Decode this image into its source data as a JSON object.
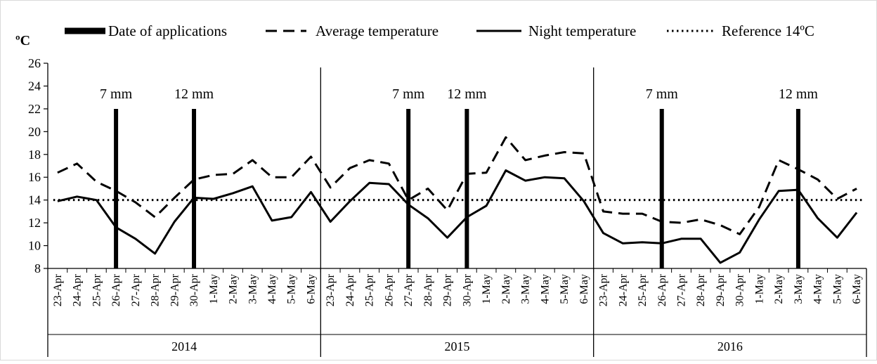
{
  "chart_data": {
    "type": "line",
    "y_unit_label": "ºC",
    "ylim": [
      8,
      26
    ],
    "yticks": [
      8,
      10,
      12,
      14,
      16,
      18,
      20,
      22,
      24,
      26
    ],
    "grid": false,
    "legend_position": "top",
    "legend": [
      {
        "key": "applications",
        "label": "Date of applications",
        "style": "bar"
      },
      {
        "key": "average",
        "label": "Average temperature",
        "style": "dashed"
      },
      {
        "key": "night",
        "label": "Night temperature",
        "style": "solid"
      },
      {
        "key": "reference",
        "label": "Reference 14ºC",
        "style": "dotted"
      }
    ],
    "groups": [
      {
        "year": "2014",
        "categories": [
          "23-Apr",
          "24-Apr",
          "25-Apr",
          "26-Apr",
          "27-Apr",
          "28-Apr",
          "29-Apr",
          "30-Apr",
          "1-May",
          "2-May",
          "3-May",
          "4-May",
          "5-May",
          "6-May"
        ],
        "series": [
          {
            "name": "Average temperature",
            "values": [
              16.4,
              17.2,
              15.6,
              14.8,
              13.8,
              12.5,
              14.2,
              15.8,
              16.2,
              16.3,
              17.5,
              16.0,
              16.0,
              17.8
            ]
          },
          {
            "name": "Night temperature",
            "values": [
              13.9,
              14.3,
              14.0,
              11.6,
              10.6,
              9.3,
              12.1,
              14.2,
              14.1,
              14.6,
              15.2,
              12.2,
              12.5,
              14.7
            ]
          }
        ],
        "applications": [
          {
            "date": "26-Apr",
            "label": "7 mm"
          },
          {
            "date": "30-Apr",
            "label": "12 mm"
          }
        ]
      },
      {
        "year": "2015",
        "categories": [
          "23-Apr",
          "24-Apr",
          "25-Apr",
          "26-Apr",
          "27-Apr",
          "28-Apr",
          "29-Apr",
          "30-Apr",
          "1-May",
          "2-May",
          "3-May",
          "4-May",
          "5-May",
          "6-May"
        ],
        "series": [
          {
            "name": "Average temperature",
            "values": [
              15.1,
              16.8,
              17.5,
              17.2,
              14.0,
              15.0,
              13.1,
              16.3,
              16.4,
              19.5,
              17.5,
              17.9,
              18.2,
              18.1
            ]
          },
          {
            "name": "Night temperature",
            "values": [
              12.1,
              13.9,
              15.5,
              15.4,
              13.6,
              12.4,
              10.7,
              12.5,
              13.5,
              16.6,
              15.7,
              16.0,
              15.9,
              13.9
            ]
          }
        ],
        "applications": [
          {
            "date": "27-Apr",
            "label": "7 mm"
          },
          {
            "date": "30-Apr",
            "label": "12 mm"
          }
        ]
      },
      {
        "year": "2016",
        "categories": [
          "23-Apr",
          "24-Apr",
          "25-Apr",
          "26-Apr",
          "27-Apr",
          "28-Apr",
          "29-Apr",
          "30-Apr",
          "1-May",
          "2-May",
          "3-May",
          "4-May",
          "5-May",
          "6-May"
        ],
        "series": [
          {
            "name": "Average temperature",
            "values": [
              13.0,
              12.8,
              12.8,
              12.1,
              12.0,
              12.3,
              11.8,
              11.0,
              13.4,
              17.5,
              16.7,
              15.8,
              14.1,
              15.0
            ]
          },
          {
            "name": "Night temperature",
            "values": [
              11.1,
              10.2,
              10.3,
              10.2,
              10.6,
              10.6,
              8.5,
              9.4,
              12.3,
              14.8,
              14.9,
              12.4,
              10.7,
              12.9
            ]
          }
        ],
        "applications": [
          {
            "date": "26-Apr",
            "label": "7 mm"
          },
          {
            "date": "3-May",
            "label": "12 mm"
          }
        ]
      }
    ],
    "reference_value": 14
  }
}
